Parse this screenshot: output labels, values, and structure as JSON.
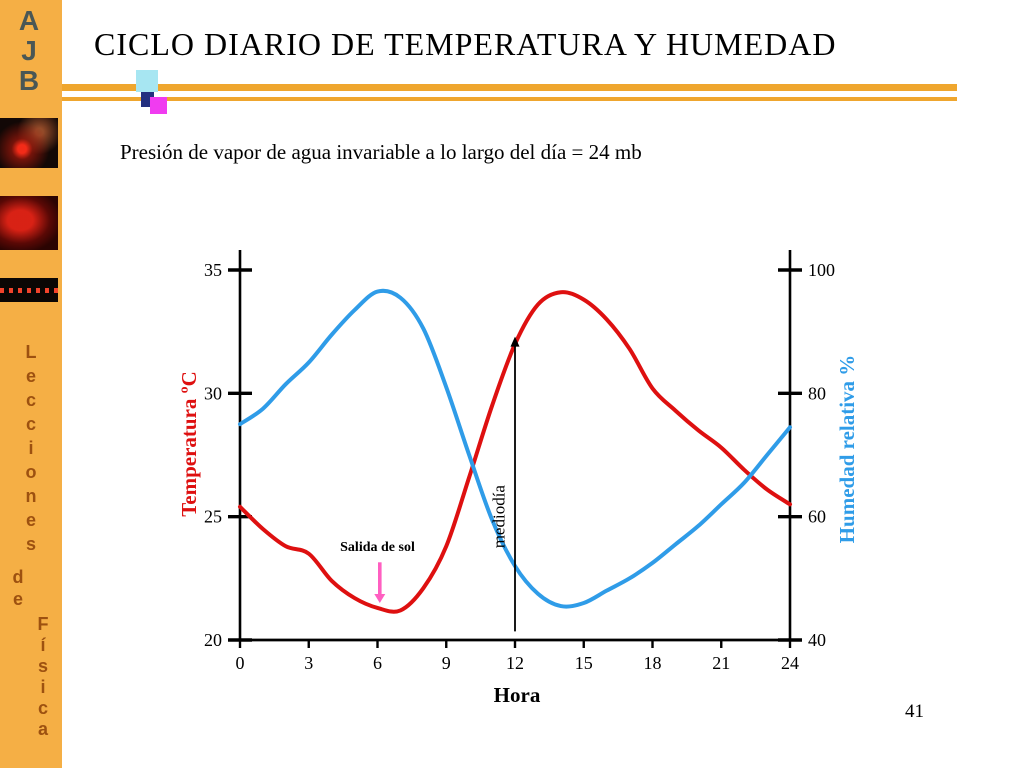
{
  "slide": {
    "title": "CICLO DIARIO DE TEMPERATURA Y HUMEDAD",
    "subtitle": "Presión de vapor de agua invariable a lo largo del día = 24 mb",
    "page_number": "41"
  },
  "sidebar": {
    "logo_letters": [
      "A",
      "J",
      "B"
    ],
    "logo_color": "#4A5755",
    "vertical_words": [
      "Lecciones",
      "de",
      "Física"
    ],
    "words_color": "#9D5110",
    "bg_color": "#F5AF45"
  },
  "accents": {
    "rule_color": "#EFA62E",
    "deco_cyan": "#A7E6F2",
    "deco_navy": "#23307F",
    "deco_magenta": "#F03CF0"
  },
  "chart_data": {
    "type": "line",
    "title": "",
    "xlabel": "Hora",
    "x_range": [
      0,
      24
    ],
    "x_ticks": [
      0,
      3,
      6,
      9,
      12,
      15,
      18,
      21,
      24
    ],
    "x": [
      0,
      1,
      2,
      3,
      4,
      5,
      6,
      7,
      8,
      9,
      10,
      11,
      12,
      13,
      14,
      15,
      16,
      17,
      18,
      19,
      20,
      21,
      22,
      23,
      24
    ],
    "left_axis": {
      "label": "Temperatura ºC",
      "color": "#DE1010",
      "ticks": [
        20,
        25,
        30,
        35
      ],
      "range": [
        20,
        35
      ]
    },
    "right_axis": {
      "label": "Humedad relativa %",
      "color": "#2F9CE8",
      "ticks": [
        40,
        60,
        80,
        100
      ],
      "range": [
        40,
        100
      ]
    },
    "series": [
      {
        "name": "Temperatura",
        "axis": "left",
        "color": "#DE1010",
        "values": [
          25.4,
          24.5,
          23.8,
          23.5,
          22.4,
          21.7,
          21.3,
          21.2,
          22.1,
          23.8,
          26.6,
          29.5,
          32.0,
          33.6,
          34.1,
          33.8,
          33.0,
          31.8,
          30.2,
          29.3,
          28.5,
          27.8,
          26.9,
          26.1,
          25.5
        ]
      },
      {
        "name": "Humedad relativa",
        "axis": "right",
        "color": "#2F9CE8",
        "values": [
          75,
          77.5,
          81.5,
          85,
          89.5,
          93.5,
          96.5,
          95.5,
          90.5,
          81,
          70,
          59.5,
          52,
          47.5,
          45.5,
          46,
          48,
          50,
          52.5,
          55.5,
          58.5,
          62,
          65.5,
          70,
          74.5
        ]
      }
    ],
    "annotations": {
      "sunrise": {
        "text": "Salida de sol",
        "color": "#FF5FC1",
        "arrow_hour": 6.1,
        "arrow_from_temp": 23.15,
        "arrow_tip_temp": 21.5,
        "label_hour": 6.0,
        "label_temp": 23.6
      },
      "noon": {
        "text": "mediodía",
        "color": "#000000",
        "arrow_hour": 12,
        "arrow_from_temp": 20.35,
        "arrow_tip_temp": 32.3,
        "label_hour": 11.55,
        "label_temp": 25.0
      }
    },
    "grid": false,
    "legend": "none"
  }
}
